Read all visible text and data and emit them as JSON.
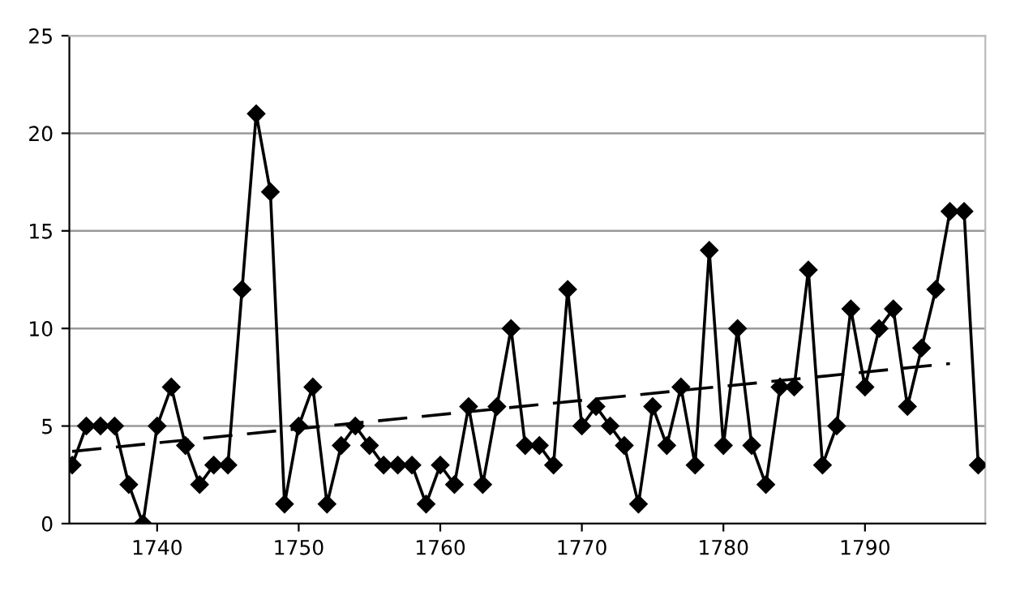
{
  "chart_data": {
    "type": "line",
    "x": [
      1734,
      1735,
      1736,
      1737,
      1738,
      1739,
      1740,
      1741,
      1742,
      1743,
      1744,
      1745,
      1746,
      1747,
      1748,
      1749,
      1750,
      1751,
      1752,
      1753,
      1754,
      1755,
      1756,
      1757,
      1758,
      1759,
      1760,
      1761,
      1762,
      1763,
      1764,
      1765,
      1766,
      1767,
      1768,
      1769,
      1770,
      1771,
      1772,
      1773,
      1774,
      1775,
      1776,
      1777,
      1778,
      1779,
      1780,
      1781,
      1782,
      1783,
      1784,
      1785,
      1786,
      1787,
      1788,
      1789,
      1790,
      1791,
      1792,
      1793,
      1794,
      1795,
      1796,
      1797,
      1798
    ],
    "series": [
      {
        "color": "#000000",
        "marker": "diamond",
        "line_style": "solid",
        "values": [
          3,
          5,
          5,
          5,
          2,
          0,
          5,
          7,
          4,
          2,
          3,
          3,
          12,
          21,
          17,
          1,
          5,
          7,
          1,
          4,
          5,
          4,
          3,
          3,
          3,
          1,
          3,
          2,
          6,
          2,
          6,
          10,
          4,
          4,
          3,
          12,
          5,
          6,
          5,
          4,
          1,
          6,
          4,
          7,
          3,
          14,
          4,
          10,
          4,
          2,
          7,
          7,
          13,
          3,
          5,
          11,
          7,
          10,
          11,
          6,
          9,
          12,
          16,
          16,
          3
        ]
      },
      {
        "type": "line",
        "color": "#000000",
        "marker": "none",
        "line_style": "dashed",
        "x": [
          1734,
          1796
        ],
        "values": [
          3.7,
          8.2
        ]
      }
    ],
    "xlim": [
      1733.8,
      1798.5
    ],
    "xticks": [
      1740,
      1750,
      1760,
      1770,
      1780,
      1790
    ],
    "ylim": [
      0,
      25
    ],
    "yticks": [
      0,
      5,
      10,
      15,
      20,
      25
    ],
    "grid": "y"
  }
}
